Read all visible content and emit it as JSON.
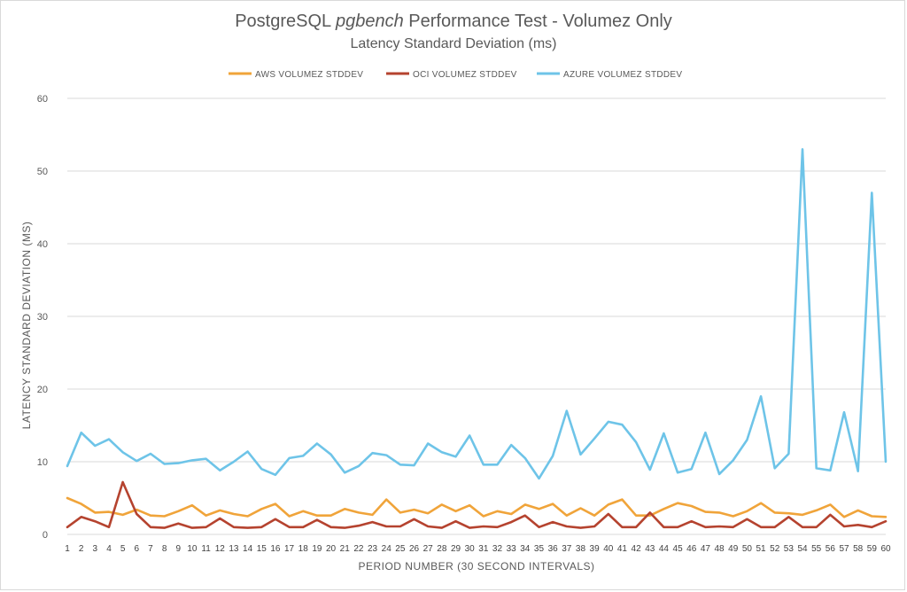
{
  "chart_data": {
    "type": "line",
    "title": "PostgreSQL pgbench Performance Test - Volumez Only",
    "title_parts": [
      "PostgreSQL ",
      "pgbench",
      " Performance Test - Volumez Only"
    ],
    "subtitle": "Latency Standard Deviation (ms)",
    "xlabel": "PERIOD NUMBER (30 SECOND INTERVALS)",
    "ylabel": "LATENCY STANDARD DEVIATION (MS)",
    "ylim": [
      0,
      60
    ],
    "yticks": [
      0,
      10,
      20,
      30,
      40,
      50,
      60
    ],
    "grid": "horizontal",
    "legend_position": "top",
    "x": [
      1,
      2,
      3,
      4,
      5,
      6,
      7,
      8,
      9,
      10,
      11,
      12,
      13,
      14,
      15,
      16,
      17,
      18,
      19,
      20,
      21,
      22,
      23,
      24,
      25,
      26,
      27,
      28,
      29,
      30,
      31,
      32,
      33,
      34,
      35,
      36,
      37,
      38,
      39,
      40,
      41,
      42,
      43,
      44,
      45,
      46,
      47,
      48,
      49,
      50,
      51,
      52,
      53,
      54,
      55,
      56,
      57,
      58,
      59,
      60
    ],
    "series": [
      {
        "name": "AWS VOLUMEZ STDDEV",
        "color": "#f0a43a",
        "values": [
          5.0,
          4.2,
          3.0,
          3.1,
          2.7,
          3.4,
          2.6,
          2.5,
          3.2,
          4.0,
          2.6,
          3.3,
          2.8,
          2.5,
          3.5,
          4.2,
          2.5,
          3.2,
          2.6,
          2.6,
          3.5,
          3.0,
          2.7,
          4.8,
          3.0,
          3.4,
          2.9,
          4.1,
          3.2,
          4.0,
          2.5,
          3.2,
          2.8,
          4.1,
          3.5,
          4.2,
          2.6,
          3.6,
          2.6,
          4.1,
          4.8,
          2.6,
          2.6,
          3.5,
          4.3,
          3.9,
          3.1,
          3.0,
          2.5,
          3.2,
          4.3,
          3.0,
          2.9,
          2.7,
          3.3,
          4.1,
          2.4,
          3.3,
          2.5,
          2.4
        ]
      },
      {
        "name": "OCI VOLUMEZ STDDEV",
        "color": "#b5432f",
        "values": [
          1.0,
          2.4,
          1.8,
          1.0,
          7.2,
          2.8,
          1.0,
          0.9,
          1.5,
          0.9,
          1.0,
          2.2,
          1.0,
          0.9,
          1.0,
          2.1,
          1.0,
          1.0,
          2.0,
          1.0,
          0.9,
          1.2,
          1.7,
          1.1,
          1.1,
          2.1,
          1.1,
          0.9,
          1.8,
          0.9,
          1.1,
          1.0,
          1.7,
          2.6,
          1.0,
          1.7,
          1.1,
          0.9,
          1.1,
          2.8,
          1.0,
          1.0,
          3.0,
          1.0,
          1.0,
          1.8,
          1.0,
          1.1,
          1.0,
          2.1,
          1.0,
          1.0,
          2.4,
          1.0,
          1.0,
          2.7,
          1.1,
          1.3,
          1.0,
          1.8
        ]
      },
      {
        "name": "AZURE VOLUMEZ STDDEV",
        "color": "#6ec4e8",
        "values": [
          9.4,
          14.0,
          12.2,
          13.1,
          11.3,
          10.1,
          11.1,
          9.7,
          9.8,
          10.2,
          10.4,
          8.8,
          10.0,
          11.4,
          9.0,
          8.2,
          10.5,
          10.8,
          12.5,
          11.0,
          8.5,
          9.4,
          11.2,
          10.9,
          9.6,
          9.5,
          12.5,
          11.3,
          10.7,
          13.6,
          9.6,
          9.6,
          12.3,
          10.5,
          7.7,
          10.8,
          17.0,
          11.0,
          13.2,
          15.5,
          15.1,
          12.7,
          8.9,
          13.9,
          8.5,
          9.0,
          14.0,
          8.3,
          10.2,
          13.0,
          19.0,
          9.1,
          11.1,
          53.0,
          9.1,
          8.8,
          16.8,
          8.7,
          47.0,
          10.0
        ]
      }
    ]
  }
}
